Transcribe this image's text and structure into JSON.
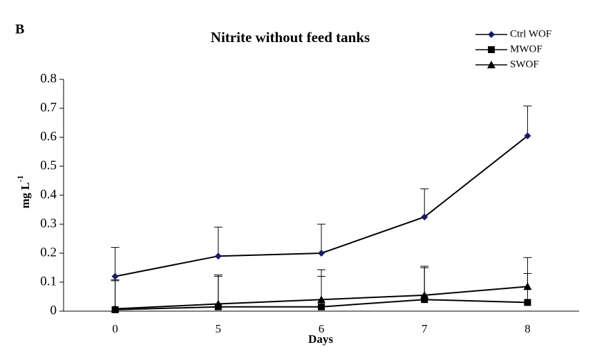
{
  "chart_data": {
    "type": "line",
    "panel_label": "B",
    "title": "Nitrite without feed tanks",
    "x_label": "Days",
    "y_label": "mg L",
    "y_label_superscript": "-1",
    "categories": [
      "0",
      "5",
      "6",
      "7",
      "8"
    ],
    "ylim": [
      0,
      0.8
    ],
    "yticks": [
      0,
      0.1,
      0.2,
      0.3,
      0.4,
      0.5,
      0.6,
      0.7,
      0.8
    ],
    "legend": "top-right",
    "series": [
      {
        "name": "Ctrl WOF",
        "color": "#1a1a66",
        "marker": "diamond",
        "values": [
          0.12,
          0.19,
          0.2,
          0.325,
          0.605
        ],
        "errors": [
          0.1,
          0.1,
          0.1,
          0.097,
          0.103
        ]
      },
      {
        "name": "MWOF",
        "color": "#000000",
        "marker": "square",
        "values": [
          0.005,
          0.015,
          0.015,
          0.04,
          0.03
        ],
        "errors": [
          0.1,
          0.105,
          0.105,
          0.11,
          0.1
        ]
      },
      {
        "name": "SWOF",
        "color": "#000000",
        "marker": "triangle",
        "values": [
          0.008,
          0.025,
          0.04,
          0.055,
          0.085
        ],
        "errors": [
          0.1,
          0.1,
          0.103,
          0.1,
          0.1
        ]
      }
    ]
  }
}
